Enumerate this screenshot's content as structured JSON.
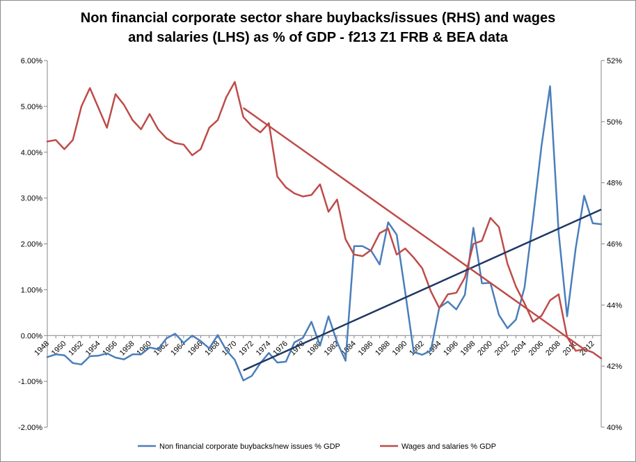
{
  "chart_data": {
    "type": "line",
    "title_line1": "Non financial corporate sector share buybacks/issues (RHS) and wages",
    "title_line2": "and salaries (LHS) as % of GDP - f213 Z1 FRB & BEA data",
    "x": [
      1948,
      1949,
      1950,
      1951,
      1952,
      1953,
      1954,
      1955,
      1956,
      1957,
      1958,
      1959,
      1960,
      1961,
      1962,
      1963,
      1964,
      1965,
      1966,
      1967,
      1968,
      1969,
      1970,
      1971,
      1972,
      1973,
      1974,
      1975,
      1976,
      1977,
      1978,
      1979,
      1980,
      1981,
      1982,
      1983,
      1984,
      1985,
      1986,
      1987,
      1988,
      1989,
      1990,
      1991,
      1992,
      1993,
      1994,
      1995,
      1996,
      1997,
      1998,
      1999,
      2000,
      2001,
      2002,
      2003,
      2004,
      2005,
      2006,
      2007,
      2008,
      2009,
      2010,
      2011,
      2012,
      2013
    ],
    "x_tick_labels": [
      "1948",
      "1950",
      "1952",
      "1954",
      "1956",
      "1958",
      "1960",
      "1962",
      "1964",
      "1966",
      "1968",
      "1970",
      "1972",
      "1974",
      "1976",
      "1978",
      "1980",
      "1982",
      "1984",
      "1986",
      "1988",
      "1990",
      "1992",
      "1994",
      "1996",
      "1998",
      "2000",
      "2002",
      "2004",
      "2006",
      "2008",
      "2010",
      "2012"
    ],
    "y_left": {
      "min": -2,
      "max": 6,
      "ticks": [
        "-2.00%",
        "-1.00%",
        "0.00%",
        "1.00%",
        "2.00%",
        "3.00%",
        "4.00%",
        "5.00%",
        "6.00%"
      ]
    },
    "y_right": {
      "min": 40,
      "max": 52,
      "ticks": [
        "40%",
        "42%",
        "44%",
        "46%",
        "48%",
        "50%",
        "52%"
      ]
    },
    "gridlines": false,
    "legend_position": "bottom",
    "series": [
      {
        "name": "Non financial corporate buybacks/new issues % GDP",
        "axis": "left",
        "color": "#4a7ebb",
        "values": [
          -0.47,
          -0.41,
          -0.43,
          -0.6,
          -0.63,
          -0.45,
          -0.44,
          -0.39,
          -0.48,
          -0.52,
          -0.41,
          -0.41,
          -0.26,
          -0.3,
          -0.06,
          0.04,
          -0.16,
          0.0,
          -0.12,
          -0.28,
          0.01,
          -0.32,
          -0.53,
          -0.98,
          -0.88,
          -0.6,
          -0.38,
          -0.59,
          -0.57,
          -0.15,
          -0.05,
          0.3,
          -0.22,
          0.42,
          -0.14,
          -0.55,
          1.95,
          1.95,
          1.85,
          1.55,
          2.47,
          2.2,
          0.95,
          -0.36,
          -0.42,
          -0.33,
          0.61,
          0.74,
          0.57,
          0.89,
          2.35,
          1.14,
          1.15,
          0.45,
          0.16,
          0.35,
          1.05,
          2.55,
          4.15,
          5.44,
          2.25,
          0.42,
          1.9,
          3.05,
          2.45,
          2.43
        ]
      },
      {
        "name": "Wages and salaries % GDP",
        "axis": "right",
        "color": "#be4b48",
        "values": [
          49.35,
          49.4,
          49.1,
          49.4,
          50.5,
          51.1,
          50.45,
          49.8,
          50.9,
          50.55,
          50.05,
          49.75,
          50.25,
          49.75,
          49.45,
          49.3,
          49.25,
          48.9,
          49.1,
          49.8,
          50.05,
          50.8,
          51.3,
          50.15,
          49.85,
          49.65,
          49.95,
          48.2,
          47.85,
          47.65,
          47.55,
          47.6,
          47.95,
          47.05,
          47.45,
          46.15,
          45.65,
          45.6,
          45.8,
          46.35,
          46.5,
          45.65,
          45.85,
          45.55,
          45.2,
          44.45,
          43.9,
          44.35,
          44.4,
          44.9,
          46.0,
          46.1,
          46.85,
          46.55,
          45.35,
          44.6,
          44.05,
          43.45,
          43.65,
          44.15,
          44.35,
          42.95,
          42.5,
          42.55,
          42.45,
          42.25
        ]
      }
    ],
    "trendlines": [
      {
        "series": "Non financial corporate buybacks/new issues % GDP",
        "axis": "left",
        "color": "#1f3864",
        "x": [
          1971,
          2013
        ],
        "y": [
          -0.76,
          2.75
        ]
      },
      {
        "series": "Wages and salaries % GDP",
        "axis": "right",
        "color": "#be4b48",
        "x": [
          1971,
          2011
        ],
        "y": [
          50.45,
          42.55
        ]
      }
    ]
  }
}
